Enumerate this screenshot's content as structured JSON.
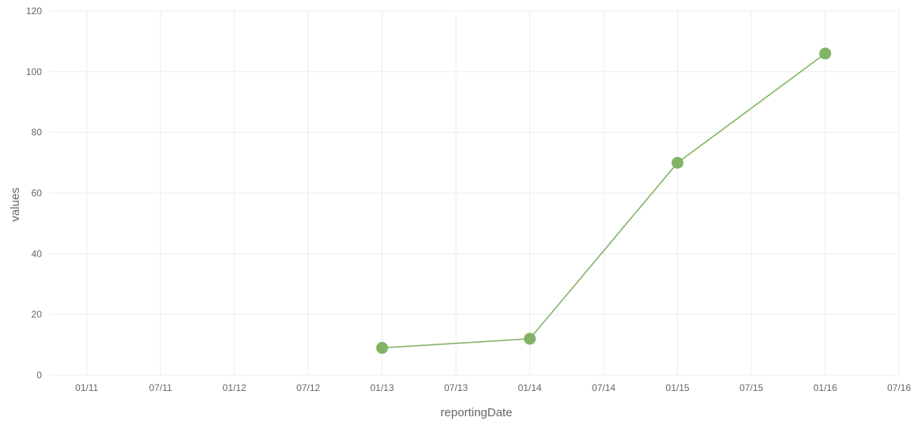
{
  "chart_data": {
    "type": "line",
    "title": "",
    "xlabel": "reportingDate",
    "ylabel": "values",
    "x_tick_labels": [
      "01/11",
      "07/11",
      "01/12",
      "07/12",
      "01/13",
      "07/13",
      "01/14",
      "07/14",
      "01/15",
      "07/15",
      "01/16",
      "07/16"
    ],
    "y_tick_labels": [
      "0",
      "20",
      "40",
      "60",
      "80",
      "100",
      "120"
    ],
    "y_ticks": [
      0,
      20,
      40,
      60,
      80,
      100,
      120
    ],
    "ylim": [
      0,
      120
    ],
    "xlim": [
      "2010-10",
      "2016-07"
    ],
    "x_tick_dates": [
      "2011-01",
      "2011-07",
      "2012-01",
      "2012-07",
      "2013-01",
      "2013-07",
      "2014-01",
      "2014-07",
      "2015-01",
      "2015-07",
      "2016-01",
      "2016-07"
    ],
    "grid": true,
    "legend": "none",
    "series": [
      {
        "color": "#82b366",
        "x": [
          "2013-01",
          "2014-01",
          "2015-01",
          "2016-01"
        ],
        "values": [
          9,
          12,
          70,
          106
        ]
      }
    ]
  }
}
